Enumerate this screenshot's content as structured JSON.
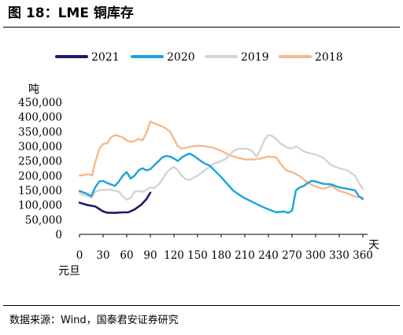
{
  "figure": {
    "title": "图 18：LME 铜库存",
    "source": "数据来源：Wind，国泰君安证券研究"
  },
  "chart_data": {
    "type": "line",
    "title": "",
    "ylabel": "吨",
    "xlabel": "天",
    "x_origin_label": "元旦",
    "xlim": [
      0,
      360
    ],
    "ylim": [
      0,
      450000
    ],
    "x_ticks": [
      0,
      30,
      60,
      90,
      120,
      150,
      180,
      210,
      240,
      270,
      300,
      330,
      360
    ],
    "y_ticks": [
      0,
      50000,
      100000,
      150000,
      200000,
      250000,
      300000,
      350000,
      400000,
      450000
    ],
    "y_tick_labels": [
      "0",
      "50,000",
      "100,000",
      "150,000",
      "200,000",
      "250,000",
      "300,000",
      "350,000",
      "400,000",
      "450,000"
    ],
    "grid": false,
    "legend": "top",
    "series": [
      {
        "name": "2021",
        "color": "#1a1a6e",
        "x": [
          0,
          10,
          20,
          30,
          35,
          45,
          55,
          62,
          70,
          78,
          85,
          90
        ],
        "y": [
          108000,
          100000,
          95000,
          78000,
          74000,
          73000,
          75000,
          75000,
          85000,
          100000,
          120000,
          142000
        ]
      },
      {
        "name": "2020",
        "color": "#1aa3db",
        "x": [
          0,
          8,
          15,
          20,
          25,
          30,
          35,
          40,
          45,
          50,
          55,
          60,
          65,
          70,
          75,
          80,
          85,
          90,
          95,
          100,
          105,
          110,
          115,
          120,
          125,
          130,
          135,
          140,
          145,
          150,
          155,
          160,
          165,
          170,
          175,
          180,
          185,
          190,
          195,
          200,
          210,
          220,
          230,
          240,
          250,
          260,
          265,
          270,
          275,
          280,
          285,
          290,
          295,
          300,
          310,
          320,
          330,
          340,
          350,
          355,
          360
        ],
        "y": [
          148000,
          140000,
          130000,
          160000,
          180000,
          182000,
          175000,
          170000,
          165000,
          180000,
          200000,
          212000,
          190000,
          200000,
          218000,
          225000,
          218000,
          222000,
          235000,
          248000,
          262000,
          267000,
          265000,
          258000,
          250000,
          262000,
          270000,
          275000,
          268000,
          258000,
          248000,
          240000,
          235000,
          222000,
          208000,
          195000,
          180000,
          165000,
          150000,
          140000,
          123000,
          110000,
          97000,
          85000,
          75000,
          78000,
          73000,
          80000,
          150000,
          160000,
          165000,
          175000,
          182000,
          180000,
          172000,
          170000,
          160000,
          155000,
          150000,
          130000,
          120000
        ]
      },
      {
        "name": "2019",
        "color": "#d4d4d4",
        "x": [
          0,
          8,
          15,
          20,
          25,
          30,
          40,
          50,
          55,
          60,
          65,
          70,
          75,
          80,
          85,
          90,
          95,
          100,
          105,
          110,
          115,
          120,
          125,
          130,
          135,
          140,
          150,
          160,
          170,
          180,
          185,
          190,
          195,
          200,
          205,
          210,
          215,
          220,
          225,
          230,
          235,
          240,
          245,
          250,
          255,
          260,
          265,
          270,
          275,
          280,
          285,
          290,
          300,
          310,
          315,
          320,
          330,
          340,
          350,
          355,
          360
        ],
        "y": [
          140000,
          132000,
          125000,
          145000,
          150000,
          152000,
          152000,
          145000,
          130000,
          118000,
          125000,
          145000,
          148000,
          145000,
          152000,
          160000,
          158000,
          168000,
          185000,
          208000,
          222000,
          230000,
          218000,
          200000,
          188000,
          185000,
          200000,
          220000,
          240000,
          250000,
          255000,
          268000,
          282000,
          290000,
          292000,
          292000,
          290000,
          282000,
          265000,
          290000,
          322000,
          338000,
          335000,
          325000,
          310000,
          302000,
          295000,
          292000,
          300000,
          292000,
          282000,
          278000,
          272000,
          260000,
          248000,
          235000,
          225000,
          218000,
          200000,
          175000,
          155000
        ]
      },
      {
        "name": "2018",
        "color": "#f7b88b",
        "x": [
          0,
          8,
          12,
          16,
          20,
          25,
          30,
          35,
          40,
          45,
          50,
          55,
          60,
          65,
          70,
          75,
          80,
          85,
          90,
          95,
          100,
          105,
          110,
          115,
          120,
          125,
          130,
          140,
          150,
          160,
          170,
          180,
          190,
          200,
          210,
          220,
          230,
          240,
          250,
          255,
          260,
          265,
          270,
          280,
          290,
          300,
          310,
          320,
          330,
          340,
          350,
          360
        ],
        "y": [
          200000,
          203000,
          205000,
          200000,
          245000,
          290000,
          308000,
          310000,
          330000,
          338000,
          335000,
          330000,
          320000,
          315000,
          318000,
          325000,
          320000,
          345000,
          385000,
          378000,
          372000,
          368000,
          360000,
          350000,
          325000,
          300000,
          292000,
          298000,
          302000,
          300000,
          295000,
          285000,
          270000,
          262000,
          255000,
          255000,
          258000,
          265000,
          262000,
          242000,
          225000,
          215000,
          212000,
          198000,
          175000,
          163000,
          155000,
          165000,
          148000,
          140000,
          128000,
          125000
        ]
      }
    ]
  }
}
